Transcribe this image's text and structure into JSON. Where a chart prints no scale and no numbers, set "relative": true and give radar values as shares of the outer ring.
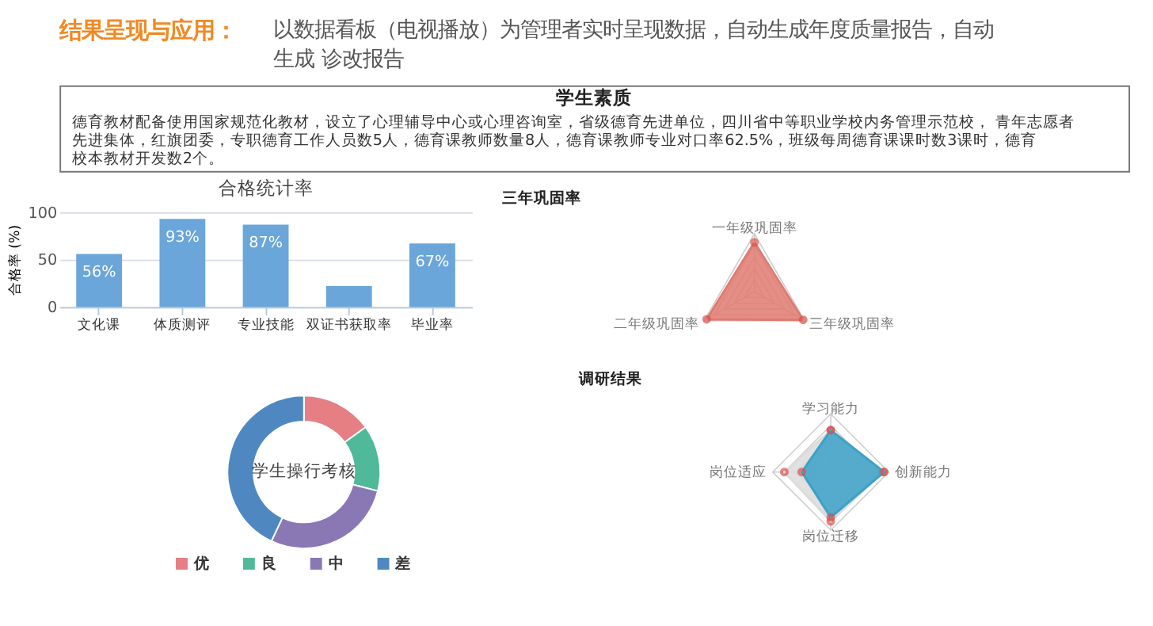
{
  "chart_data": [
    {
      "type": "other",
      "title": "结果呈现与应用：",
      "subtitle": "以数据看板（电视播放）为管理者实时呈现数据，自动生成年度质量报告，自动生成 诊改报告"
    },
    {
      "type": "other",
      "title": "学生素质",
      "annotations": [
        "德育教材配备使用国家规范化教材，设立了心理辅导中心或心理咨询室，省级德育先进单位，四川省中等职业学校内务管理示范校， 青年志愿者先进集体，红旗团委，专职德育工作人员数5人，德育课教师数量8人，德育课教师专业对口率62.5%，班级每周德育课课时数3课时，德育校本教材开发数2个。"
      ]
    },
    {
      "type": "bar",
      "title": "合格统计率",
      "ylabel": "合格率 (%)",
      "categories": [
        "文化课",
        "体质测评",
        "专业技能",
        "双证书获取率",
        "毕业率"
      ],
      "values": [
        56,
        93,
        87,
        22,
        67
      ],
      "value_labels": [
        "56%",
        "93%",
        "87%",
        null,
        "67%"
      ],
      "color": "#6aa6d9",
      "ylim": [
        0,
        100
      ],
      "yticks": [
        0,
        50,
        100
      ],
      "grid": "y"
    },
    {
      "type": "radar",
      "title": "三年巩固率",
      "categories": [
        "一年级巩固率",
        "三年级巩固率",
        "二年级巩固率"
      ],
      "relative": true,
      "marker": "circle",
      "grid": true,
      "series": [
        {
          "color": "#e07a70",
          "values": [
            0.85,
            0.97,
            0.95
          ]
        }
      ]
    },
    {
      "type": "donut",
      "title": "学生操行考核",
      "categories": [
        "优",
        "良",
        "中",
        "差"
      ],
      "values": [
        15,
        14,
        28,
        43
      ],
      "colors": [
        "#e57f84",
        "#4fb99a",
        "#8a78b5",
        "#4f88c1"
      ],
      "legend": "bottom"
    },
    {
      "type": "radar",
      "title": "调研结果",
      "categories": [
        "学习能力",
        "创新能力",
        "岗位迁移",
        "岗位适应"
      ],
      "relative": true,
      "marker": "circle",
      "grid": true,
      "series": [
        {
          "color": "#dcdcdc",
          "values": [
            0.72,
            0.9,
            0.85,
            0.8
          ]
        },
        {
          "color": "#3ba1c8",
          "values": [
            0.72,
            0.92,
            0.78,
            0.5
          ]
        }
      ]
    }
  ]
}
